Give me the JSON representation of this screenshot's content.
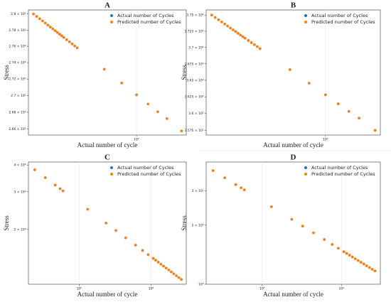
{
  "chart_data": [
    {
      "type": "scatter",
      "title": "A",
      "xlabel": "Actual number of cycle",
      "ylabel": "Stress",
      "xscale": "log",
      "yscale": "log",
      "grid": "x",
      "legend": "upper right",
      "xlim": [
        1.8,
        22
      ],
      "ylim": [
        265.3,
        280.5
      ],
      "xticks": [
        {
          "value": 10,
          "label": "10¹"
        }
      ],
      "yticks": [
        {
          "value": 266,
          "label": "2.66 × 10²"
        },
        {
          "value": 268,
          "label": "2.68 × 10²"
        },
        {
          "value": 270,
          "label": "2.7 × 10²"
        },
        {
          "value": 272,
          "label": "2.72 × 10²"
        },
        {
          "value": 274,
          "label": "2.74 × 10²"
        },
        {
          "value": 276,
          "label": "2.76 × 10²"
        },
        {
          "value": 278,
          "label": "2.78 × 10²"
        },
        {
          "value": 280,
          "label": "2.8 × 10²"
        }
      ],
      "y": [
        280,
        279.7,
        279.41,
        279.13,
        278.87,
        278.62,
        278.37,
        278.14,
        277.92,
        277.7,
        277.49,
        277.29,
        277.09,
        276.81,
        276.54,
        276.29,
        276.04,
        275.8,
        273.19,
        271.52,
        270.09,
        268.99,
        268.06,
        267.25,
        265.78
      ],
      "series": [
        {
          "name": "Actual number of Cycles",
          "color": "#1f77b4",
          "x": [
            1.95,
            2.05,
            2.15,
            2.25,
            2.35,
            2.45,
            2.55,
            2.65,
            2.75,
            2.85,
            2.95,
            3.05,
            3.15,
            3.3,
            3.45,
            3.6,
            3.75,
            3.9,
            6,
            7.9,
            10,
            12,
            14,
            16.2,
            20.4
          ]
        },
        {
          "name": "Predicted number of Cycles",
          "color": "#ff7f0e",
          "x": [
            1.95,
            2.05,
            2.15,
            2.25,
            2.35,
            2.45,
            2.55,
            2.65,
            2.75,
            2.85,
            2.95,
            3.05,
            3.15,
            3.3,
            3.45,
            3.6,
            3.75,
            3.9,
            6,
            7.9,
            10,
            12,
            14,
            16.2,
            20.4
          ]
        }
      ]
    },
    {
      "type": "scatter",
      "title": "B",
      "xlabel": "Actual number of cycle",
      "ylabel": "Stress",
      "xscale": "log",
      "yscale": "log",
      "grid": "x",
      "legend": "upper right",
      "xlim": [
        1.8,
        22
      ],
      "ylim": [
        356.8,
        375.8
      ],
      "xticks": [
        {
          "value": 10,
          "label": "10¹"
        }
      ],
      "yticks": [
        {
          "value": 357.5,
          "label": "3.575 × 10²"
        },
        {
          "value": 360,
          "label": "3.6 × 10²"
        },
        {
          "value": 362.5,
          "label": "3.625 × 10²"
        },
        {
          "value": 365,
          "label": "3.65 × 10²"
        },
        {
          "value": 367.5,
          "label": "3.675 × 10²"
        },
        {
          "value": 370,
          "label": "3.7 × 10²"
        },
        {
          "value": 372.5,
          "label": "3.725 × 10²"
        },
        {
          "value": 375,
          "label": "3.75 × 10²"
        }
      ],
      "y": [
        375,
        374.63,
        374.27,
        373.93,
        373.61,
        373.3,
        372.99,
        372.71,
        372.44,
        372.17,
        371.91,
        371.66,
        371.42,
        371.07,
        370.74,
        370.43,
        370.13,
        369.83,
        366.62,
        364.56,
        362.8,
        361.45,
        360.31,
        359.31,
        357.5
      ],
      "series": [
        {
          "name": "Actual number of Cycles",
          "color": "#1f77b4",
          "x": [
            1.95,
            2.05,
            2.15,
            2.25,
            2.35,
            2.45,
            2.55,
            2.65,
            2.75,
            2.85,
            2.95,
            3.05,
            3.15,
            3.3,
            3.45,
            3.6,
            3.75,
            3.9,
            6,
            7.9,
            10,
            12,
            14,
            16.2,
            20.4
          ]
        },
        {
          "name": "Predicted number of Cycles",
          "color": "#ff7f0e",
          "x": [
            1.95,
            2.05,
            2.15,
            2.25,
            2.35,
            2.45,
            2.55,
            2.65,
            2.75,
            2.85,
            2.95,
            3.05,
            3.15,
            3.3,
            3.45,
            3.6,
            3.75,
            3.9,
            6,
            7.9,
            10,
            12,
            14,
            16.2,
            20.4
          ]
        }
      ]
    },
    {
      "type": "scatter",
      "title": "C",
      "xlabel": "Actual number of cycle",
      "ylabel": "Stress",
      "xscale": "log",
      "yscale": "log",
      "grid": "x",
      "legend": "upper right",
      "xlim": [
        19700,
        3090000
      ],
      "ylim": [
        111,
        413
      ],
      "xticks": [
        {
          "value": 100000,
          "label": "10⁵"
        },
        {
          "value": 1000000,
          "label": "10⁶"
        }
      ],
      "yticks": [
        {
          "value": 200,
          "label": "2 × 10²"
        },
        {
          "value": 300,
          "label": "3 × 10²"
        },
        {
          "value": 400,
          "label": "4 × 10²"
        }
      ],
      "y": [
        380,
        349.1,
        322.4,
        309.9,
        302.8,
        248.5,
        214.3,
        197.9,
        182.9,
        169,
        159.6,
        152.6,
        146.6,
        143.7,
        140.7,
        137.8,
        134.9,
        132.1,
        129.4,
        126.8,
        124.2,
        121.6,
        119.2,
        116.9
      ],
      "series": [
        {
          "name": "Actual number of Cycles",
          "color": "#1f77b4",
          "x": [
            24100,
            33800,
            46400,
            54300,
            59600,
            131000,
            236000,
            324000,
            444000,
            608000,
            763000,
            912000,
            1070000,
            1160000,
            1260000,
            1370000,
            1490000,
            1620000,
            1760000,
            1910000,
            2070000,
            2250000,
            2440000,
            2640000
          ]
        },
        {
          "name": "Predicted number of Cycles",
          "color": "#ff7f0e",
          "x": [
            24100,
            33800,
            46400,
            54300,
            59600,
            131000,
            236000,
            324000,
            444000,
            608000,
            763000,
            912000,
            1070000,
            1160000,
            1260000,
            1370000,
            1490000,
            1620000,
            1760000,
            1910000,
            2070000,
            2250000,
            2440000,
            2640000
          ]
        }
      ]
    },
    {
      "type": "scatter",
      "title": "D",
      "xlabel": "Actual number of cycle",
      "ylabel": "Stress",
      "xscale": "log",
      "yscale": "log",
      "grid": "x",
      "legend": "upper right",
      "xlim": [
        19700,
        3090000
      ],
      "ylim": [
        100,
        420
      ],
      "xticks": [
        {
          "value": 100000,
          "label": "10⁵"
        },
        {
          "value": 1000000,
          "label": "10⁶"
        }
      ],
      "yticks": [
        {
          "value": 100,
          "label": "10²"
        },
        {
          "value": 200,
          "label": "2 × 10²"
        },
        {
          "value": 300,
          "label": "3 × 10²"
        }
      ],
      "y": [
        380,
        349.1,
        322.4,
        309.9,
        302.8,
        248.5,
        214.3,
        197.9,
        182.9,
        169,
        159.6,
        152.6,
        146.6,
        143.7,
        140.7,
        137.8,
        134.9,
        132.1,
        129.4,
        126.8,
        124.2,
        121.6,
        119.2,
        116.9
      ],
      "series": [
        {
          "name": "Actual number of Cycles",
          "color": "#1f77b4",
          "x": [
            24100,
            33800,
            46400,
            54300,
            59600,
            131000,
            236000,
            324000,
            444000,
            608000,
            763000,
            912000,
            1070000,
            1160000,
            1260000,
            1370000,
            1490000,
            1620000,
            1760000,
            1910000,
            2070000,
            2250000,
            2440000,
            2640000
          ]
        },
        {
          "name": "Predicted number of Cycles",
          "color": "#ff7f0e",
          "x": [
            24100,
            33800,
            46400,
            54300,
            59600,
            131000,
            236000,
            324000,
            444000,
            608000,
            763000,
            912000,
            1070000,
            1160000,
            1260000,
            1370000,
            1490000,
            1620000,
            1760000,
            1910000,
            2070000,
            2250000,
            2440000,
            2640000
          ]
        }
      ]
    }
  ]
}
